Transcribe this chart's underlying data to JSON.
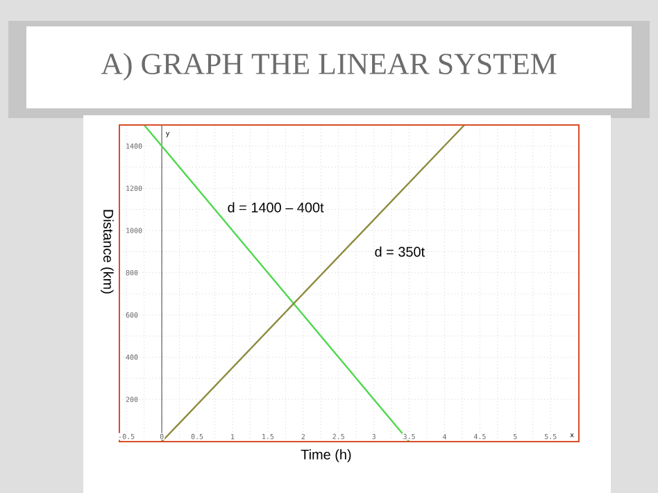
{
  "chart_data": {
    "type": "line",
    "title": "A) GRAPH THE LINEAR SYSTEM",
    "xlabel": "Time (h)",
    "ylabel": "Distance (km)",
    "series": [
      {
        "x": [
          -0.25,
          3.5
        ],
        "values": [
          1500,
          0
        ],
        "color": "#4cd94c"
      },
      {
        "x": [
          0,
          4.28
        ],
        "values": [
          0,
          1500
        ],
        "color": "#8c8a3c"
      }
    ],
    "annotations": [
      "d = 1400 – 400t",
      "d = 350t",
      "y",
      "x"
    ],
    "xlim": [
      -0.6,
      5.9
    ],
    "ylim": [
      0,
      1500
    ],
    "xticks": [
      -0.5,
      0,
      0.5,
      1,
      1.5,
      2,
      2.5,
      3,
      3.5,
      4,
      4.5,
      5,
      5.5
    ],
    "yticks": [
      200,
      400,
      600,
      800,
      1000,
      1200,
      1400
    ],
    "grid": true,
    "marker": "none",
    "line_style": "solid"
  }
}
